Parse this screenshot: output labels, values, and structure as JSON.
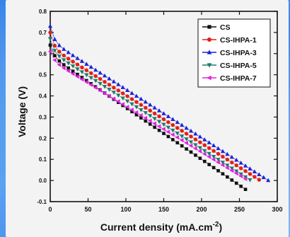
{
  "chart_data": {
    "type": "scatter",
    "xlabel": "Current density (mA.cm",
    "xlabel_sup": "-2",
    "xlabel_end": ")",
    "ylabel": "Voltage (V)",
    "xlim": [
      0,
      300
    ],
    "ylim": [
      -0.1,
      0.8
    ],
    "xticks": [
      0,
      50,
      100,
      150,
      200,
      250,
      300
    ],
    "yticks": [
      -0.1,
      0.0,
      0.1,
      0.2,
      0.3,
      0.4,
      0.5,
      0.6,
      0.7,
      0.8
    ],
    "xtick_labels": [
      "0",
      "50",
      "100",
      "150",
      "200",
      "250",
      "300"
    ],
    "ytick_labels": [
      "-0.1",
      "0.0",
      "0.1",
      "0.2",
      "0.3",
      "0.4",
      "0.5",
      "0.6",
      "0.7",
      "0.8"
    ],
    "legend_position": "top-right",
    "series": [
      {
        "name": "CS",
        "color": "#111111",
        "marker": "square",
        "x0": 0,
        "x1": 258,
        "v0": 0.64,
        "vdrop": 0.59,
        "vslope": 0.00245
      },
      {
        "name": "CS-IHPA-1",
        "color": "#e0201a",
        "marker": "circle",
        "x0": 0,
        "x1": 278,
        "v0": 0.7,
        "vdrop": 0.63,
        "vslope": 0.00227
      },
      {
        "name": "CS-IHPA-3",
        "color": "#1a22d8",
        "marker": "triangle-up",
        "x0": 0,
        "x1": 288,
        "v0": 0.73,
        "vdrop": 0.66,
        "vslope": 0.00229
      },
      {
        "name": "CS-IHPA-5",
        "color": "#1e7a6a",
        "marker": "triangle-down",
        "x0": 0,
        "x1": 265,
        "v0": 0.67,
        "vdrop": 0.61,
        "vslope": 0.0023
      },
      {
        "name": "CS-IHPA-7",
        "color": "#e020e0",
        "marker": "triangle-left",
        "x0": 0,
        "x1": 262,
        "v0": 0.61,
        "vdrop": 0.57,
        "vslope": 0.00218
      }
    ]
  }
}
